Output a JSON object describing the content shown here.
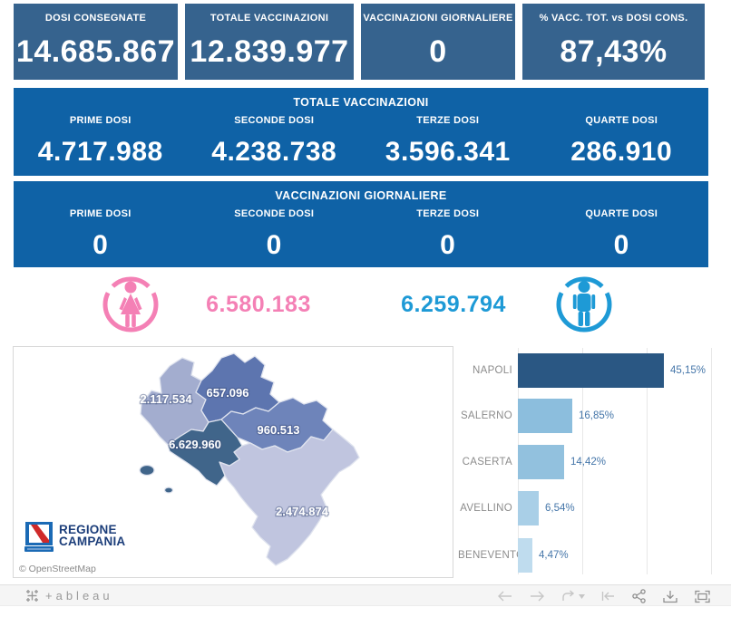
{
  "kpi_boxes": [
    {
      "label": "DOSI CONSEGNATE",
      "value": "14.685.867"
    },
    {
      "label": "TOTALE VACCINAZIONI",
      "value": "12.839.977"
    },
    {
      "label": "VACCINAZIONI GIORNALIERE",
      "value": "0"
    },
    {
      "label": "% VACC. TOT. vs DOSI CONS.",
      "value": "87,43%"
    }
  ],
  "totals_band": {
    "title": "TOTALE VACCINAZIONI",
    "columns": [
      {
        "label": "PRIME DOSI",
        "value": "4.717.988"
      },
      {
        "label": "SECONDE DOSI",
        "value": "4.238.738"
      },
      {
        "label": "TERZE DOSI",
        "value": "3.596.341"
      },
      {
        "label": "QUARTE DOSI",
        "value": "286.910"
      }
    ]
  },
  "daily_band": {
    "title": "VACCINAZIONI GIORNALIERE",
    "columns": [
      {
        "label": "PRIME DOSI",
        "value": "0"
      },
      {
        "label": "SECONDE DOSI",
        "value": "0"
      },
      {
        "label": "TERZE DOSI",
        "value": "0"
      },
      {
        "label": "QUARTE DOSI",
        "value": "0"
      }
    ]
  },
  "gender": {
    "female_icon": "female-icon",
    "female_value": "6.580.183",
    "male_value": "6.259.794",
    "male_icon": "male-icon"
  },
  "map": {
    "attribution": "© OpenStreetMap",
    "logo": {
      "line1": "REGIONE",
      "line2": "CAMPANIA"
    },
    "regions": [
      {
        "name": "CASERTA",
        "value": "2.117.534",
        "color": "#A3ADCF"
      },
      {
        "name": "BENEVENTO",
        "value": "657.096",
        "color": "#5D75AF"
      },
      {
        "name": "AVELLINO",
        "value": "960.513",
        "color": "#6E84BA"
      },
      {
        "name": "NAPOLI",
        "value": "6.629.960",
        "color": "#40658A"
      },
      {
        "name": "SALERNO",
        "value": "2.474.874",
        "color": "#C0C5DF"
      }
    ]
  },
  "chart_data": {
    "type": "bar",
    "orientation": "horizontal",
    "categories": [
      "NAPOLI",
      "SALERNO",
      "CASERTA",
      "AVELLINO",
      "BENEVENTO"
    ],
    "values": [
      45.15,
      16.85,
      14.42,
      6.54,
      4.47
    ],
    "value_labels": [
      "45,15%",
      "16,85%",
      "14,42%",
      "6,54%",
      "4,47%"
    ],
    "bar_colors": [
      "#2A5783",
      "#8CBEDD",
      "#92C1DE",
      "#A9CFE7",
      "#BFDCEE"
    ],
    "title": "",
    "xlabel": "",
    "ylabel": "",
    "xlim": [
      0,
      66
    ],
    "gridline_step_pct": 20,
    "grid": "vertical-on",
    "legend": "none"
  },
  "toolbar": {
    "logo_text": "+ableau",
    "icons": [
      "undo",
      "redo",
      "replay",
      "revert",
      "share",
      "download",
      "fullscreen"
    ]
  },
  "colors": {
    "kpi_box": "#36638E",
    "band": "#0F62A6",
    "female": "#F480B5",
    "male": "#1E9AD6",
    "value_label": "#4576A9",
    "category_label": "#8C8C8C"
  }
}
